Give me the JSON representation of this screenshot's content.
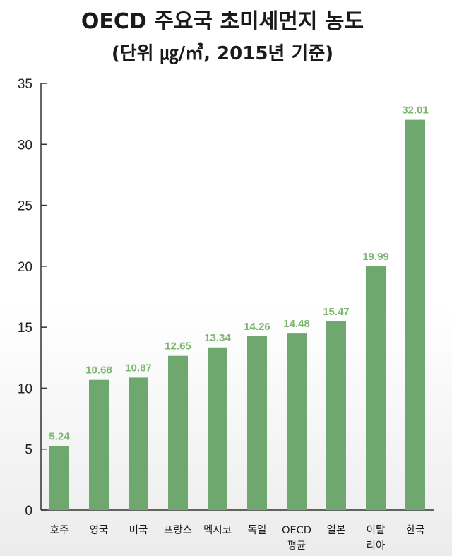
{
  "chart_data": {
    "type": "bar",
    "title": "OECD 주요국 초미세먼지 농도",
    "subtitle": "(단위 ㎍/㎥, 2015년 기준)",
    "categories": [
      [
        "호주"
      ],
      [
        "영국"
      ],
      [
        "미국"
      ],
      [
        "프랑스"
      ],
      [
        "멕시코"
      ],
      [
        "독일"
      ],
      [
        "OECD",
        "평균"
      ],
      [
        "일본"
      ],
      [
        "이탈",
        "리아"
      ],
      [
        "한국"
      ]
    ],
    "values": [
      5.24,
      10.68,
      10.87,
      12.65,
      13.34,
      14.26,
      14.48,
      15.47,
      19.99,
      32.01
    ],
    "value_labels": [
      "5.24",
      "10.68",
      "10.87",
      "12.65",
      "13.34",
      "14.26",
      "14.48",
      "15.47",
      "19.99",
      "32.01"
    ],
    "yticks": [
      "0",
      "5",
      "10",
      "15",
      "20",
      "25",
      "30",
      "35"
    ],
    "ylim": [
      0,
      35
    ],
    "grid": false,
    "legend": "none",
    "colors": {
      "bar": "#6fa86f",
      "value_label": "#7bb86f",
      "axis": "#333333"
    }
  }
}
